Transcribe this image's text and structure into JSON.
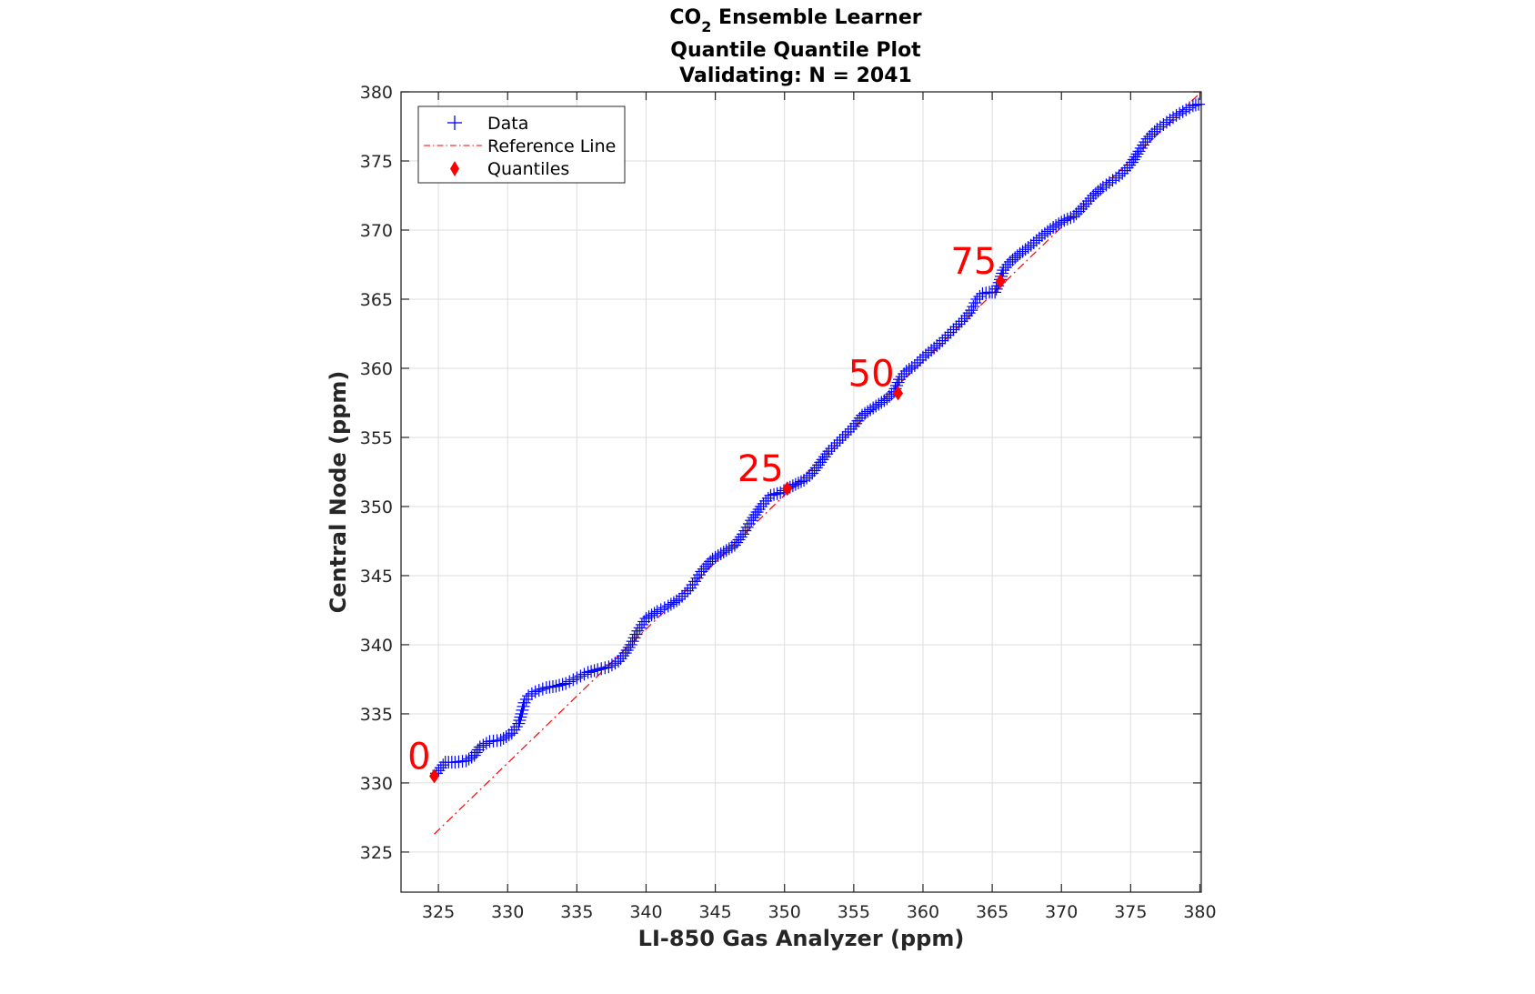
{
  "chart_data": {
    "type": "scatter",
    "title": {
      "prefix": "CO",
      "subscript": "2",
      "suffix": " Ensemble Learner",
      "line2": "Quantile Quantile Plot",
      "line3": "Validating: N = 2041"
    },
    "xlabel": "LI-850 Gas Analyzer (ppm)",
    "ylabel": "Central Node (ppm)",
    "xlim": [
      322.3,
      380.1
    ],
    "ylim": [
      322.1,
      380.0
    ],
    "xticks": [
      325,
      330,
      335,
      340,
      345,
      350,
      355,
      360,
      365,
      370,
      375,
      380
    ],
    "yticks": [
      325,
      330,
      335,
      340,
      345,
      350,
      355,
      360,
      365,
      370,
      375,
      380
    ],
    "grid": true,
    "legend": {
      "placement": "top-left",
      "entries": [
        {
          "label": "Data",
          "marker": "+",
          "color": "#0000ff"
        },
        {
          "label": "Reference Line",
          "marker": "dash-dot line",
          "color": "#ff0000"
        },
        {
          "label": "Quantiles",
          "marker": "diamond",
          "color": "#ff0000"
        }
      ]
    },
    "series": [
      {
        "name": "Data",
        "marker": "+",
        "color": "#0000ff",
        "points": [
          [
            324.7,
            330.5
          ],
          [
            325.5,
            331.5
          ],
          [
            326.2,
            331.5
          ],
          [
            327.0,
            331.6
          ],
          [
            327.6,
            332.0
          ],
          [
            328.0,
            332.6
          ],
          [
            328.7,
            333.0
          ],
          [
            329.5,
            333.1
          ],
          [
            330.3,
            333.6
          ],
          [
            330.8,
            334.3
          ],
          [
            331.0,
            335.0
          ],
          [
            331.2,
            335.8
          ],
          [
            331.5,
            336.3
          ],
          [
            332.0,
            336.6
          ],
          [
            332.8,
            336.9
          ],
          [
            333.5,
            337.0
          ],
          [
            334.2,
            337.2
          ],
          [
            335.0,
            337.6
          ],
          [
            335.8,
            338.0
          ],
          [
            336.5,
            338.2
          ],
          [
            337.3,
            338.4
          ],
          [
            338.0,
            338.8
          ],
          [
            338.5,
            339.4
          ],
          [
            338.9,
            340.0
          ],
          [
            339.4,
            341.0
          ],
          [
            340.0,
            341.9
          ],
          [
            340.8,
            342.4
          ],
          [
            341.6,
            342.8
          ],
          [
            342.4,
            343.3
          ],
          [
            343.2,
            344.1
          ],
          [
            344.0,
            345.3
          ],
          [
            344.8,
            346.2
          ],
          [
            345.6,
            346.7
          ],
          [
            346.4,
            347.2
          ],
          [
            347.0,
            348.0
          ],
          [
            347.6,
            349.0
          ],
          [
            348.3,
            350.0
          ],
          [
            349.0,
            350.8
          ],
          [
            349.7,
            351.0
          ],
          [
            350.2,
            351.3
          ],
          [
            350.8,
            351.6
          ],
          [
            351.4,
            351.9
          ],
          [
            352.0,
            352.4
          ],
          [
            352.6,
            353.2
          ],
          [
            353.2,
            354.0
          ],
          [
            353.8,
            354.6
          ],
          [
            354.4,
            355.2
          ],
          [
            355.0,
            355.8
          ],
          [
            355.6,
            356.6
          ],
          [
            356.2,
            357.0
          ],
          [
            356.8,
            357.4
          ],
          [
            357.4,
            357.8
          ],
          [
            357.9,
            358.3
          ],
          [
            358.3,
            359.2
          ],
          [
            358.8,
            359.8
          ],
          [
            359.4,
            360.2
          ],
          [
            360.0,
            360.8
          ],
          [
            360.6,
            361.3
          ],
          [
            361.2,
            361.8
          ],
          [
            361.8,
            362.4
          ],
          [
            362.4,
            363.0
          ],
          [
            363.0,
            363.6
          ],
          [
            363.5,
            364.2
          ],
          [
            363.9,
            365.0
          ],
          [
            364.3,
            365.4
          ],
          [
            364.8,
            365.5
          ],
          [
            365.2,
            365.5
          ],
          [
            365.5,
            366.2
          ],
          [
            365.8,
            367.1
          ],
          [
            366.3,
            367.7
          ],
          [
            367.0,
            368.3
          ],
          [
            367.8,
            368.9
          ],
          [
            368.6,
            369.6
          ],
          [
            369.4,
            370.2
          ],
          [
            370.2,
            370.7
          ],
          [
            370.9,
            371.0
          ],
          [
            371.6,
            371.7
          ],
          [
            372.3,
            372.5
          ],
          [
            373.0,
            373.1
          ],
          [
            373.7,
            373.6
          ],
          [
            374.4,
            374.1
          ],
          [
            375.1,
            374.9
          ],
          [
            375.6,
            375.7
          ],
          [
            376.2,
            376.6
          ],
          [
            376.9,
            377.3
          ],
          [
            377.6,
            377.8
          ],
          [
            378.3,
            378.3
          ],
          [
            379.0,
            378.7
          ],
          [
            379.5,
            379.0
          ],
          [
            379.9,
            379.1
          ]
        ]
      },
      {
        "name": "Reference Line",
        "line": "dash-dot",
        "color": "#ff0000",
        "points": [
          [
            324.7,
            326.3
          ],
          [
            380.1,
            380.0
          ]
        ]
      },
      {
        "name": "Quantiles",
        "marker": "diamond",
        "color": "#ff0000",
        "points": [
          {
            "x": 324.7,
            "y": 330.5,
            "label": "0"
          },
          {
            "x": 350.2,
            "y": 351.3,
            "label": "25"
          },
          {
            "x": 358.2,
            "y": 358.2,
            "label": "50"
          },
          {
            "x": 365.6,
            "y": 366.3,
            "label": "75"
          }
        ]
      }
    ]
  }
}
